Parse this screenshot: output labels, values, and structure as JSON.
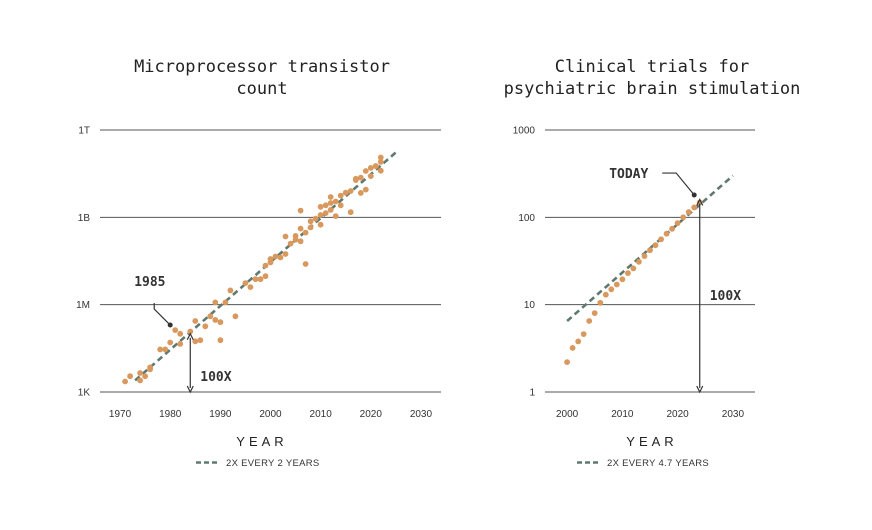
{
  "chart_data": [
    {
      "type": "scatter",
      "title_lines": [
        "Microprocessor transistor",
        "count"
      ],
      "xlabel": "YEAR",
      "ylabel": "",
      "y_scale": "log",
      "xlim": [
        1966,
        2034
      ],
      "x_ticks": [
        1970,
        1980,
        1990,
        2000,
        2010,
        2020,
        2030
      ],
      "x_tick_labels": [
        "1970",
        "1980",
        "1990",
        "2000",
        "2010",
        "2020",
        "2030"
      ],
      "ylim": [
        1000,
        1000000000000
      ],
      "y_ticks": [
        1000,
        1000000,
        1000000000,
        1000000000000
      ],
      "y_tick_labels": [
        "1K",
        "1M",
        "1B",
        "1T"
      ],
      "grid": "horizontal",
      "trend": {
        "label": "2X EVERY 2 YEARS",
        "x": [
          1973,
          2025
        ],
        "y": [
          2500,
          170000000000
        ],
        "color": "#5e7a70"
      },
      "point_color": "#d8985e",
      "annotations": [
        {
          "label": "1985",
          "x": 1980,
          "y": 200000
        },
        {
          "label": "100X",
          "from": [
            1984,
            1000
          ],
          "to": [
            1984,
            100000
          ]
        }
      ],
      "points": [
        [
          1971,
          2300
        ],
        [
          1972,
          3500
        ],
        [
          1974,
          2500
        ],
        [
          1974,
          4500
        ],
        [
          1975,
          3500
        ],
        [
          1976,
          6000
        ],
        [
          1976,
          7000
        ],
        [
          1978,
          29000
        ],
        [
          1979,
          29000
        ],
        [
          1980,
          50000
        ],
        [
          1981,
          134000
        ],
        [
          1982,
          100000
        ],
        [
          1982,
          45000
        ],
        [
          1984,
          120000
        ],
        [
          1985,
          275000
        ],
        [
          1985,
          55000
        ],
        [
          1986,
          60000
        ],
        [
          1987,
          180000
        ],
        [
          1988,
          400000
        ],
        [
          1989,
          1200000
        ],
        [
          1989,
          300000
        ],
        [
          1990,
          250000
        ],
        [
          1990,
          60000
        ],
        [
          1991,
          1200000
        ],
        [
          1992,
          3100000
        ],
        [
          1993,
          400000
        ],
        [
          1995,
          5500000
        ],
        [
          1996,
          4000000
        ],
        [
          1997,
          7500000
        ],
        [
          1998,
          7500000
        ],
        [
          1999,
          9500000
        ],
        [
          1999,
          22000000
        ],
        [
          2000,
          28000000
        ],
        [
          2000,
          37000000
        ],
        [
          2001,
          45000000
        ],
        [
          2002,
          42000000
        ],
        [
          2003,
          55000000
        ],
        [
          2003,
          220000000
        ],
        [
          2004,
          125000000
        ],
        [
          2005,
          170000000
        ],
        [
          2005,
          230000000
        ],
        [
          2006,
          410000000
        ],
        [
          2006,
          150000000
        ],
        [
          2006,
          1700000000
        ],
        [
          2007,
          300000000
        ],
        [
          2007,
          25000000
        ],
        [
          2008,
          450000000
        ],
        [
          2008,
          730000000
        ],
        [
          2009,
          900000000
        ],
        [
          2010,
          1200000000
        ],
        [
          2010,
          560000000
        ],
        [
          2010,
          2300000000
        ],
        [
          2011,
          2600000000
        ],
        [
          2011,
          1400000000
        ],
        [
          2012,
          3100000000
        ],
        [
          2012,
          1800000000
        ],
        [
          2012,
          5000000000
        ],
        [
          2013,
          3500000000
        ],
        [
          2013,
          1100000000
        ],
        [
          2014,
          2600000000
        ],
        [
          2014,
          5600000000
        ],
        [
          2015,
          7000000000
        ],
        [
          2016,
          8000000000
        ],
        [
          2016,
          1500000000
        ],
        [
          2017,
          19000000000
        ],
        [
          2017,
          21000000000
        ],
        [
          2018,
          23000000000
        ],
        [
          2018,
          6900000000
        ],
        [
          2019,
          39000000000
        ],
        [
          2019,
          9000000000
        ],
        [
          2020,
          50000000000
        ],
        [
          2020,
          26000000000
        ],
        [
          2021,
          57000000000
        ],
        [
          2021,
          58000000000
        ],
        [
          2022,
          80000000000
        ],
        [
          2022,
          114000000000
        ],
        [
          2022,
          40000000000
        ]
      ]
    },
    {
      "type": "scatter",
      "title_lines": [
        "Clinical trials for",
        "psychiatric brain stimulation"
      ],
      "xlabel": "YEAR",
      "ylabel": "",
      "y_scale": "log",
      "xlim": [
        1996,
        2034
      ],
      "x_ticks": [
        2000,
        2010,
        2020,
        2030
      ],
      "x_tick_labels": [
        "2000",
        "2010",
        "2020",
        "2030"
      ],
      "ylim": [
        1,
        1000
      ],
      "y_ticks": [
        1,
        10,
        100,
        1000
      ],
      "y_tick_labels": [
        "1",
        "10",
        "100",
        "1000"
      ],
      "grid": "horizontal",
      "trend": {
        "label": "2X EVERY 4.7 YEARS",
        "x": [
          2000,
          2030
        ],
        "y": [
          6.5,
          300
        ],
        "color": "#5e7a70"
      },
      "point_color": "#d8985e",
      "annotations": [
        {
          "label": "TODAY",
          "x": 2023,
          "y": 180
        },
        {
          "label": "100X",
          "from": [
            2024,
            1
          ],
          "to": [
            2024,
            160
          ]
        }
      ],
      "points": [
        [
          2000,
          2.2
        ],
        [
          2001,
          3.2
        ],
        [
          2002,
          3.8
        ],
        [
          2003,
          4.6
        ],
        [
          2004,
          6.5
        ],
        [
          2005,
          8
        ],
        [
          2006,
          10.5
        ],
        [
          2007,
          13
        ],
        [
          2008,
          15
        ],
        [
          2009,
          17
        ],
        [
          2010,
          19.5
        ],
        [
          2011,
          23
        ],
        [
          2012,
          26
        ],
        [
          2013,
          31
        ],
        [
          2014,
          36
        ],
        [
          2015,
          42
        ],
        [
          2016,
          48
        ],
        [
          2017,
          56
        ],
        [
          2018,
          65
        ],
        [
          2019,
          74
        ],
        [
          2020,
          86
        ],
        [
          2021,
          100
        ],
        [
          2022,
          115
        ],
        [
          2023,
          130
        ],
        [
          2024,
          148
        ]
      ]
    }
  ]
}
